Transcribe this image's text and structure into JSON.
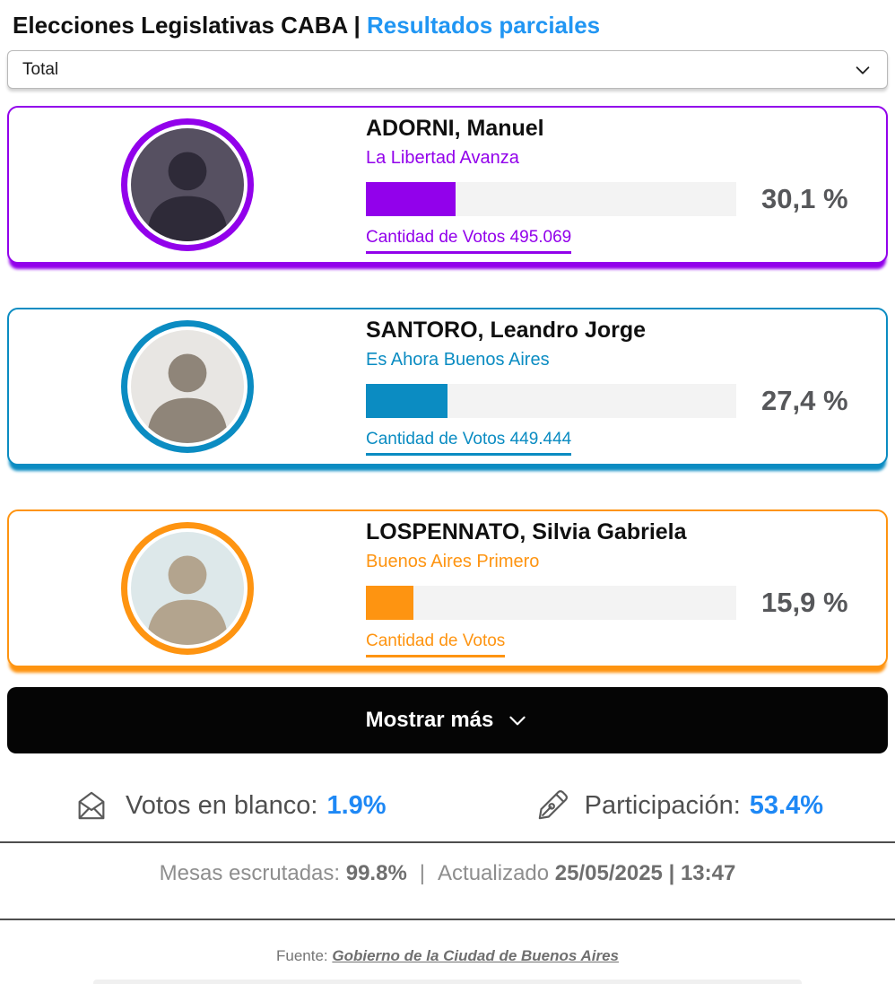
{
  "header": {
    "title": "Elecciones Legislativas CABA",
    "separator": " | ",
    "subtitle": "Resultados parciales"
  },
  "filter": {
    "selected": "Total"
  },
  "candidates": [
    {
      "name": "ADORNI, Manuel",
      "party": "La Libertad Avanza",
      "percent": 30.1,
      "percent_label": "30,1 %",
      "votes_label": "Cantidad de Votos 495.069",
      "color": "#9201eb",
      "avatar_bg": "#565061",
      "silhouette": "#2e2a38"
    },
    {
      "name": "SANTORO, Leandro Jorge",
      "party": "Es Ahora Buenos Aires",
      "percent": 27.4,
      "percent_label": "27,4 %",
      "votes_label": "Cantidad de Votos 449.444",
      "color": "#0b8cc2",
      "avatar_bg": "#e8e6e3",
      "silhouette": "#8f8579"
    },
    {
      "name": "LOSPENNATO, Silvia Gabriela",
      "party": "Buenos Aires Primero",
      "percent": 15.9,
      "percent_label": "15,9 %",
      "votes_label": "Cantidad de Votos",
      "color": "#fe9411",
      "avatar_bg": "#dde8ea",
      "silhouette": "#b3a48e"
    }
  ],
  "show_more": {
    "label": "Mostrar más"
  },
  "stats": {
    "blank_label": "Votos en blanco:",
    "blank_value": "1.9%",
    "participation_label": "Participación:",
    "participation_value": "53.4%",
    "value_color": "#1e88f5"
  },
  "meta": {
    "tables_label": "Mesas escrutadas:",
    "tables_value": "99.8%",
    "separator": "|",
    "updated_label": "Actualizado",
    "updated_value": "25/05/2025 | 13:47"
  },
  "source": {
    "label": "Fuente:",
    "link": "Gobierno de la Ciudad de Buenos Aires"
  }
}
